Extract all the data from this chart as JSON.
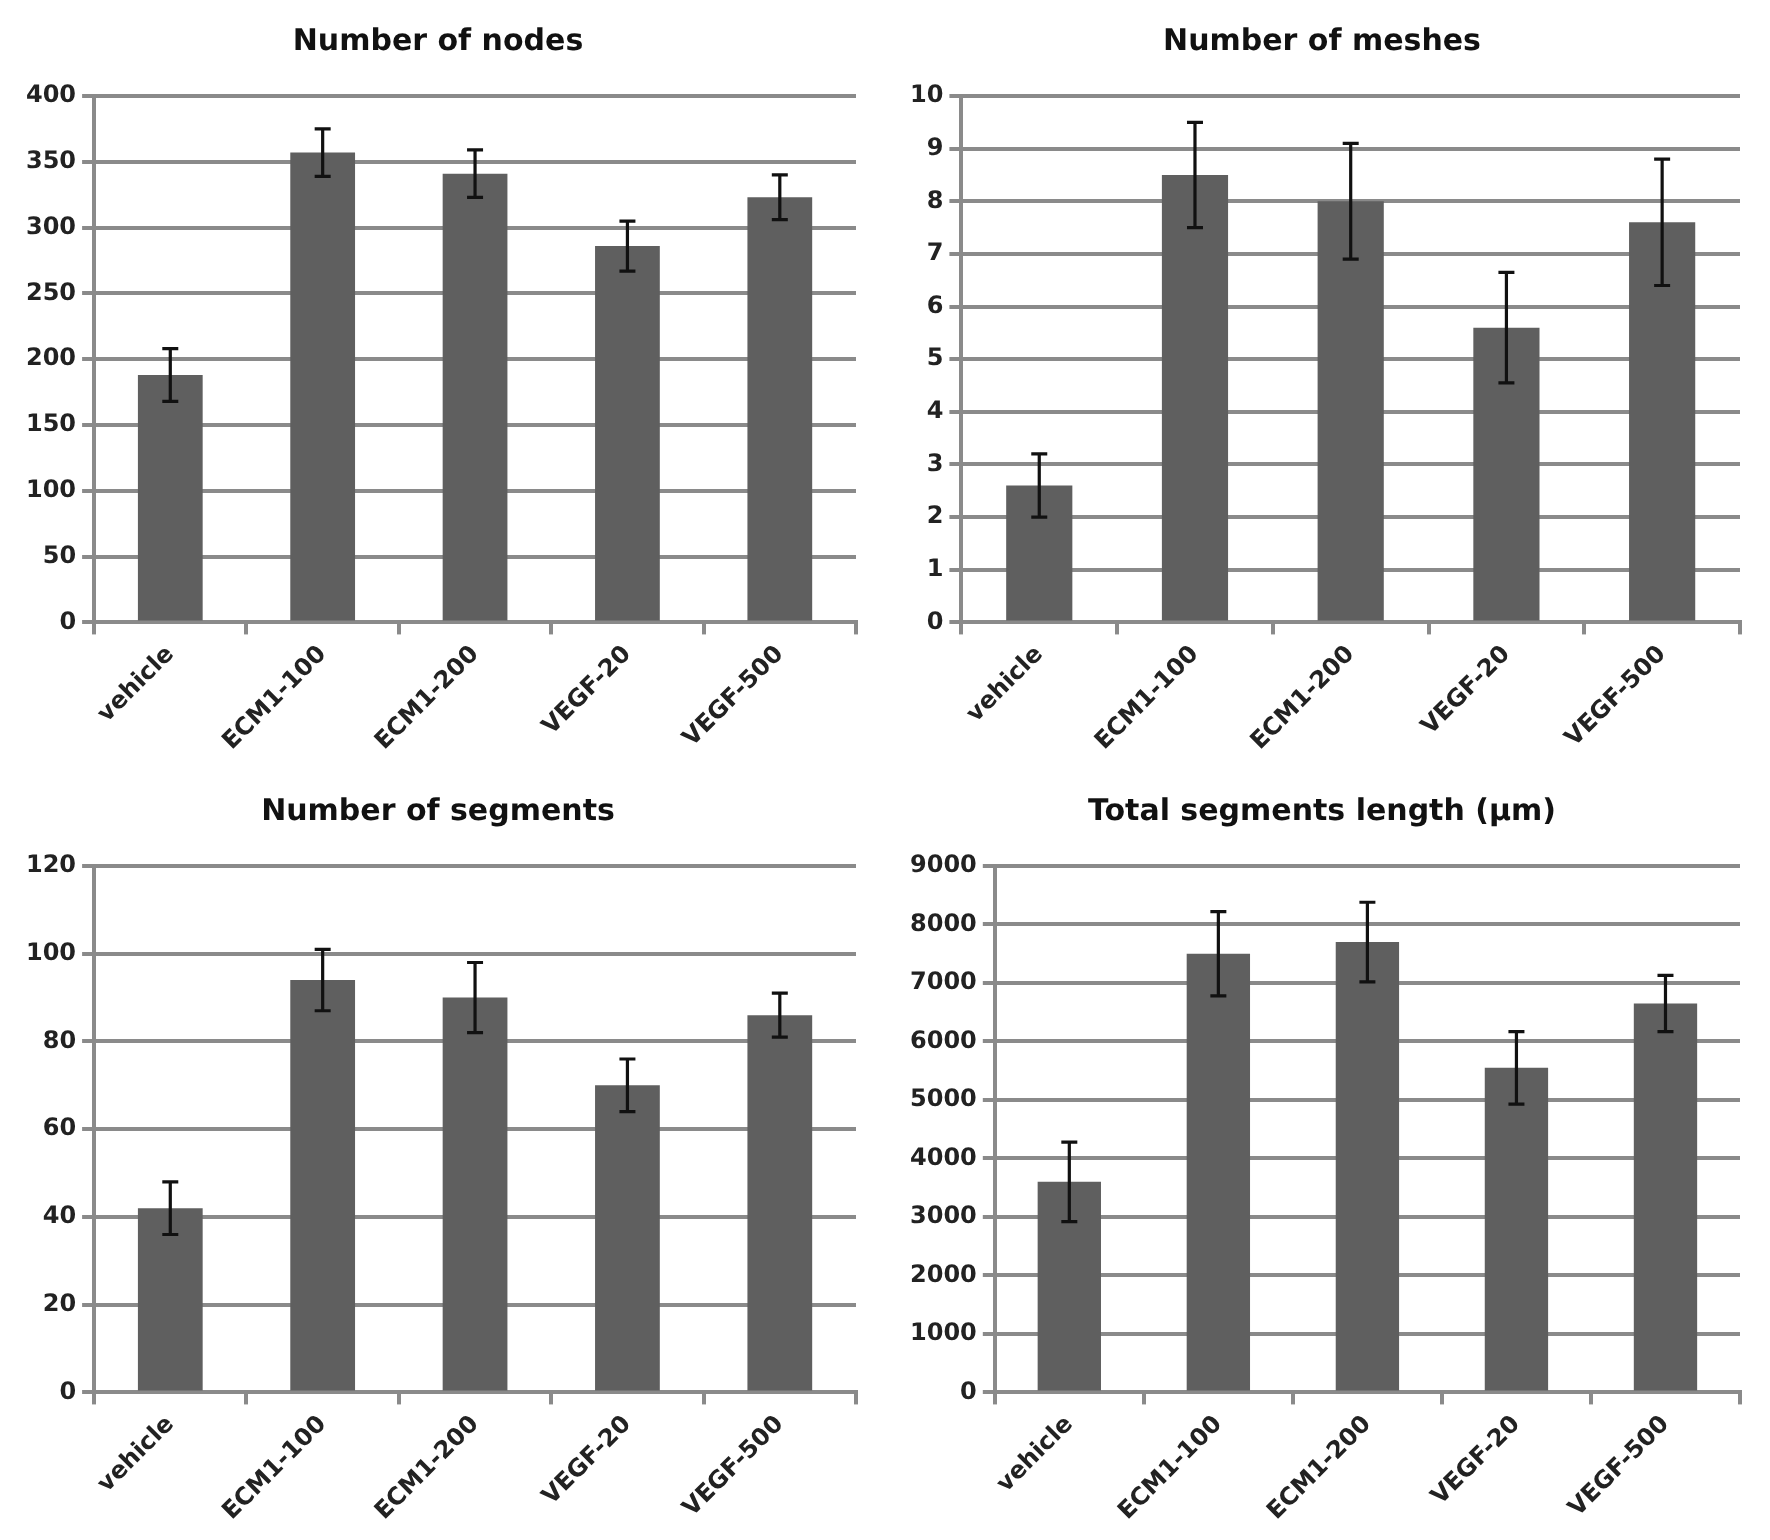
{
  "chart_data": [
    {
      "type": "bar",
      "title": "Number of nodes",
      "categories": [
        "vehicle",
        "ECM1-100",
        "ECM1-200",
        "VEGF-20",
        "VEGF-500"
      ],
      "values": [
        188,
        357,
        341,
        286,
        323
      ],
      "errors": [
        20,
        18,
        18,
        19,
        17
      ],
      "color": "#5f5f5f",
      "ylim": [
        0,
        400
      ],
      "yticks": [
        0,
        50,
        100,
        150,
        200,
        250,
        300,
        350,
        400
      ],
      "grid": "y"
    },
    {
      "type": "bar",
      "title": "Number of meshes",
      "categories": [
        "vehicle",
        "ECM1-100",
        "ECM1-200",
        "VEGF-20",
        "VEGF-500"
      ],
      "values": [
        2.6,
        8.5,
        8.0,
        5.6,
        7.6
      ],
      "errors": [
        0.6,
        1.0,
        1.1,
        1.05,
        1.2
      ],
      "color": "#5f5f5f",
      "ylim": [
        0,
        10
      ],
      "yticks": [
        0,
        1,
        2,
        3,
        4,
        5,
        6,
        7,
        8,
        9,
        10
      ],
      "grid": "y"
    },
    {
      "type": "bar",
      "title": "Number of segments",
      "categories": [
        "vehicle",
        "ECM1-100",
        "ECM1-200",
        "VEGF-20",
        "VEGF-500"
      ],
      "values": [
        42,
        94,
        90,
        70,
        86
      ],
      "errors": [
        6,
        7,
        8,
        6,
        5
      ],
      "color": "#5f5f5f",
      "ylim": [
        0,
        120
      ],
      "yticks": [
        0,
        20,
        40,
        60,
        80,
        100,
        120
      ],
      "grid": "y"
    },
    {
      "type": "bar",
      "title": "Total segments length (µm)",
      "categories": [
        "vehicle",
        "ECM1-100",
        "ECM1-200",
        "VEGF-20",
        "VEGF-500"
      ],
      "values": [
        3600,
        7500,
        7700,
        5550,
        6650
      ],
      "errors": [
        680,
        720,
        680,
        620,
        480
      ],
      "color": "#5f5f5f",
      "ylim": [
        0,
        9000
      ],
      "yticks": [
        0,
        1000,
        2000,
        3000,
        4000,
        5000,
        6000,
        7000,
        8000,
        9000
      ],
      "grid": "y"
    }
  ]
}
